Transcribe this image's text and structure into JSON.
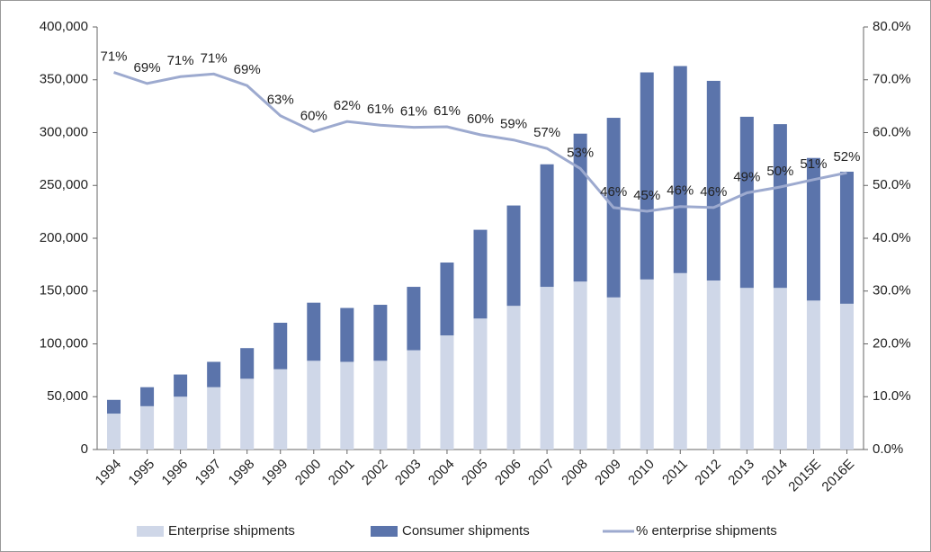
{
  "chart_data": {
    "type": "bar",
    "categories": [
      "1994",
      "1995",
      "1996",
      "1997",
      "1998",
      "1999",
      "2000",
      "2001",
      "2002",
      "2003",
      "2004",
      "2005",
      "2006",
      "2007",
      "2008",
      "2009",
      "2010",
      "2011",
      "2012",
      "2013",
      "2014",
      "2015E",
      "2016E"
    ],
    "series": [
      {
        "name": "Enterprise shipments",
        "color": "#cfd7e8",
        "type": "bar",
        "values": [
          34000,
          41000,
          50000,
          59000,
          67000,
          76000,
          84000,
          83000,
          84000,
          94000,
          108000,
          124000,
          136000,
          154000,
          159000,
          144000,
          161000,
          167000,
          160000,
          153000,
          153000,
          141000,
          138000
        ]
      },
      {
        "name": "Consumer shipments",
        "color": "#5b74ab",
        "type": "bar",
        "values": [
          13000,
          18000,
          21000,
          24000,
          29000,
          44000,
          55000,
          51000,
          53000,
          60000,
          69000,
          84000,
          95000,
          116000,
          140000,
          170000,
          196000,
          196000,
          189000,
          162000,
          155000,
          135000,
          125000
        ]
      },
      {
        "name": "% enterprise shipments",
        "color": "#9daacf",
        "type": "line",
        "axis": "y2",
        "values": [
          71.4,
          69.3,
          70.6,
          71.1,
          68.9,
          63.2,
          60.2,
          62.1,
          61.4,
          61.0,
          61.1,
          59.6,
          58.6,
          57.0,
          53.2,
          45.8,
          45.1,
          46.0,
          45.8,
          48.6,
          49.7,
          51.1,
          52.4
        ],
        "value_labels": [
          "71%",
          "69%",
          "71%",
          "71%",
          "69%",
          "63%",
          "60%",
          "62%",
          "61%",
          "61%",
          "61%",
          "60%",
          "59%",
          "57%",
          "53%",
          "46%",
          "45%",
          "46%",
          "46%",
          "49%",
          "50%",
          "51%",
          "52%"
        ]
      }
    ],
    "ylim": [
      0,
      400000
    ],
    "yticks": [
      0,
      {
        "value": 50000,
        "label": "50,000"
      },
      {
        "value": 100000,
        "label": "100,000"
      },
      {
        "value": 150000,
        "label": "150,000"
      },
      {
        "value": 200000,
        "label": "200,000"
      },
      {
        "value": 250000,
        "label": "250,000"
      },
      {
        "value": 300000,
        "label": "300,000"
      },
      {
        "value": 350000,
        "label": "350,000"
      },
      {
        "value": 400000,
        "label": "400,000"
      }
    ],
    "y2lim": [
      0,
      80
    ],
    "y2ticks": [
      {
        "value": 0,
        "label": "0.0%"
      },
      {
        "value": 10,
        "label": "10.0%"
      },
      {
        "value": 20,
        "label": "20.0%"
      },
      {
        "value": 30,
        "label": "30.0%"
      },
      {
        "value": 40,
        "label": "40.0%"
      },
      {
        "value": 50,
        "label": "50.0%"
      },
      {
        "value": 60,
        "label": "60.0%"
      },
      {
        "value": 70,
        "label": "70.0%"
      },
      {
        "value": 80,
        "label": "80.0%"
      }
    ],
    "stacked": true,
    "legend": "bottom"
  }
}
